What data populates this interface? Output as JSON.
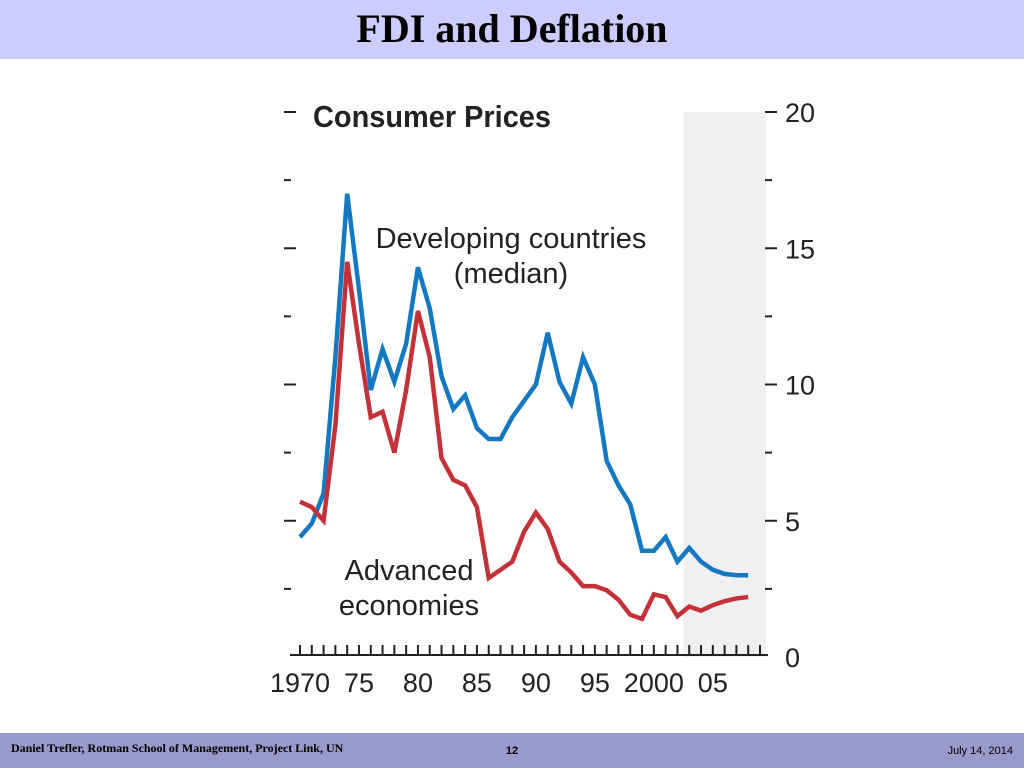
{
  "slide": {
    "title": "FDI and Deflation",
    "background": "#ffffff",
    "title_bar_color": "#ccccff",
    "footer_bar_color": "#9999cc"
  },
  "footer": {
    "author": "Daniel Trefler, Rotman School of Management, Project Link, UN",
    "page": "12",
    "date": "July 14, 2014"
  },
  "chart_data": {
    "type": "line",
    "title": "Consumer Prices",
    "xlabel": "",
    "ylabel": "",
    "xlim": [
      1970,
      2009
    ],
    "ylim": [
      0,
      20
    ],
    "x_tick_labels": [
      {
        "x": 1970,
        "label": "1970"
      },
      {
        "x": 1975,
        "label": "75"
      },
      {
        "x": 1980,
        "label": "80"
      },
      {
        "x": 1985,
        "label": "85"
      },
      {
        "x": 1990,
        "label": "90"
      },
      {
        "x": 1995,
        "label": "95"
      },
      {
        "x": 2000,
        "label": "2000"
      },
      {
        "x": 2005,
        "label": "05"
      }
    ],
    "y_tick_labels": [
      {
        "y": 0,
        "label": "0"
      },
      {
        "y": 5,
        "label": "5"
      },
      {
        "y": 10,
        "label": "10"
      },
      {
        "y": 15,
        "label": "15"
      },
      {
        "y": 20,
        "label": "20"
      }
    ],
    "shaded_region": {
      "x_start": 2002.5,
      "x_end": 2009,
      "color": "#f0f0f2"
    },
    "grid": false,
    "x": [
      1970,
      1971,
      1972,
      1973,
      1974,
      1975,
      1976,
      1977,
      1978,
      1979,
      1980,
      1981,
      1982,
      1983,
      1984,
      1985,
      1986,
      1987,
      1988,
      1989,
      1990,
      1991,
      1992,
      1993,
      1994,
      1995,
      1996,
      1997,
      1998,
      1999,
      2000,
      2001,
      2002,
      2003,
      2004,
      2005,
      2006,
      2007,
      2008
    ],
    "series": [
      {
        "name": "Developing countries (median)",
        "color": "#1479c0",
        "label_lines": [
          "Developing countries",
          "(median)"
        ],
        "values": [
          4.4,
          4.9,
          6.0,
          11.0,
          17.0,
          13.5,
          9.8,
          11.3,
          10.1,
          11.5,
          14.3,
          12.8,
          10.3,
          9.1,
          9.6,
          8.4,
          8.0,
          8.0,
          8.8,
          9.4,
          10.0,
          11.9,
          10.1,
          9.3,
          11.0,
          10.0,
          7.2,
          6.3,
          5.6,
          3.9,
          3.9,
          4.4,
          3.5,
          4.0,
          3.5,
          3.2,
          3.05,
          3.0,
          3.0
        ]
      },
      {
        "name": "Advanced economies",
        "color": "#c23238",
        "label_lines": [
          "Advanced",
          "economies"
        ],
        "values": [
          5.7,
          5.5,
          5.0,
          8.5,
          14.5,
          11.5,
          8.8,
          9.0,
          7.5,
          9.8,
          12.7,
          11.0,
          7.3,
          6.5,
          6.3,
          5.5,
          2.9,
          3.2,
          3.5,
          4.6,
          5.3,
          4.7,
          3.5,
          3.1,
          2.6,
          2.6,
          2.45,
          2.1,
          1.55,
          1.4,
          2.3,
          2.2,
          1.5,
          1.85,
          1.7,
          1.9,
          2.05,
          2.15,
          2.2
        ]
      }
    ]
  }
}
